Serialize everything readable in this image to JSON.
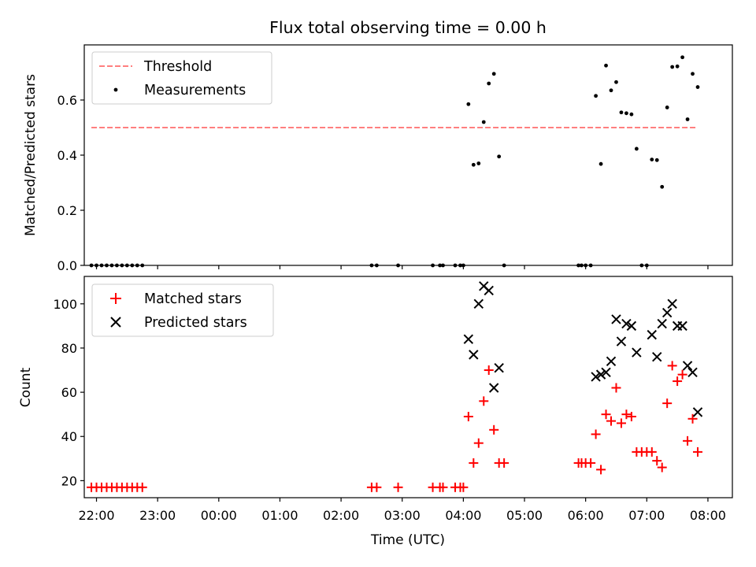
{
  "title": "Flux total observing time = 0.00 h",
  "chart_data": [
    {
      "type": "scatter",
      "ylabel": "Matched/Predicted stars",
      "xlabel": "",
      "xlim": [
        "21:48",
        "08:24"
      ],
      "ylim": [
        0,
        0.8
      ],
      "yticks": [
        0.0,
        0.2,
        0.4,
        0.6
      ],
      "ytick_labels": [
        "0.0",
        "0.2",
        "0.4",
        "0.6"
      ],
      "legend": "top-left",
      "threshold": {
        "name": "Threshold",
        "value": 0.5,
        "x_start": "21:55",
        "x_end": "07:50",
        "color": "#ff7f7f",
        "style": "dashed"
      },
      "series": [
        {
          "name": "Measurements",
          "color": "#000000",
          "marker": "dot",
          "points": [
            [
              "21:55",
              0
            ],
            [
              "22:00",
              0
            ],
            [
              "22:05",
              0
            ],
            [
              "22:10",
              0
            ],
            [
              "22:15",
              0
            ],
            [
              "22:20",
              0
            ],
            [
              "22:25",
              0
            ],
            [
              "22:30",
              0
            ],
            [
              "22:35",
              0
            ],
            [
              "22:40",
              0
            ],
            [
              "22:45",
              0
            ],
            [
              "02:30",
              0
            ],
            [
              "02:35",
              0
            ],
            [
              "02:56",
              0
            ],
            [
              "03:30",
              0
            ],
            [
              "03:37",
              0
            ],
            [
              "03:40",
              0
            ],
            [
              "03:52",
              0
            ],
            [
              "03:57",
              0
            ],
            [
              "04:00",
              0
            ],
            [
              "04:05",
              0.585
            ],
            [
              "04:10",
              0.365
            ],
            [
              "04:15",
              0.37
            ],
            [
              "04:20",
              0.52
            ],
            [
              "04:25",
              0.66
            ],
            [
              "04:30",
              0.695
            ],
            [
              "04:35",
              0.395
            ],
            [
              "04:40",
              0
            ],
            [
              "05:53",
              0
            ],
            [
              "05:56",
              0
            ],
            [
              "06:00",
              0
            ],
            [
              "06:05",
              0
            ],
            [
              "06:10",
              0.615
            ],
            [
              "06:15",
              0.368
            ],
            [
              "06:20",
              0.725
            ],
            [
              "06:25",
              0.635
            ],
            [
              "06:30",
              0.665
            ],
            [
              "06:35",
              0.555
            ],
            [
              "06:40",
              0.552
            ],
            [
              "06:45",
              0.548
            ],
            [
              "06:50",
              0.423
            ],
            [
              "06:55",
              0
            ],
            [
              "07:00",
              0
            ],
            [
              "07:05",
              0.384
            ],
            [
              "07:10",
              0.382
            ],
            [
              "07:15",
              0.285
            ],
            [
              "07:20",
              0.573
            ],
            [
              "07:25",
              0.72
            ],
            [
              "07:30",
              0.722
            ],
            [
              "07:35",
              0.755
            ],
            [
              "07:40",
              0.53
            ],
            [
              "07:45",
              0.695
            ],
            [
              "07:50",
              0.647
            ]
          ]
        }
      ]
    },
    {
      "type": "scatter",
      "ylabel": "Count",
      "xlabel": "Time (UTC)",
      "xlim": [
        "21:48",
        "08:24"
      ],
      "ylim": [
        12.3,
        112.4
      ],
      "yticks": [
        20,
        40,
        60,
        80,
        100
      ],
      "ytick_labels": [
        "20",
        "40",
        "60",
        "80",
        "100"
      ],
      "xticks": [
        "22:00",
        "23:00",
        "00:00",
        "01:00",
        "02:00",
        "03:00",
        "04:00",
        "05:00",
        "06:00",
        "07:00",
        "08:00"
      ],
      "legend": "top-left",
      "series": [
        {
          "name": "Matched stars",
          "color": "#ff0000",
          "marker": "plus",
          "points": [
            [
              "21:55",
              17
            ],
            [
              "22:00",
              17
            ],
            [
              "22:05",
              17
            ],
            [
              "22:10",
              17
            ],
            [
              "22:15",
              17
            ],
            [
              "22:20",
              17
            ],
            [
              "22:25",
              17
            ],
            [
              "22:30",
              17
            ],
            [
              "22:35",
              17
            ],
            [
              "22:40",
              17
            ],
            [
              "22:45",
              17
            ],
            [
              "02:30",
              17
            ],
            [
              "02:35",
              17
            ],
            [
              "02:56",
              17
            ],
            [
              "03:30",
              17
            ],
            [
              "03:37",
              17
            ],
            [
              "03:40",
              17
            ],
            [
              "03:52",
              17
            ],
            [
              "03:57",
              17
            ],
            [
              "04:00",
              17
            ],
            [
              "04:05",
              49
            ],
            [
              "04:10",
              28
            ],
            [
              "04:15",
              37
            ],
            [
              "04:20",
              56
            ],
            [
              "04:25",
              70
            ],
            [
              "04:30",
              43
            ],
            [
              "04:35",
              28
            ],
            [
              "04:40",
              28
            ],
            [
              "05:53",
              28
            ],
            [
              "05:56",
              28
            ],
            [
              "06:00",
              28
            ],
            [
              "06:05",
              28
            ],
            [
              "06:10",
              41
            ],
            [
              "06:15",
              25
            ],
            [
              "06:20",
              50
            ],
            [
              "06:25",
              47
            ],
            [
              "06:30",
              62
            ],
            [
              "06:35",
              46
            ],
            [
              "06:40",
              50
            ],
            [
              "06:45",
              49
            ],
            [
              "06:50",
              33
            ],
            [
              "06:55",
              33
            ],
            [
              "07:00",
              33
            ],
            [
              "07:05",
              33
            ],
            [
              "07:10",
              29
            ],
            [
              "07:15",
              26
            ],
            [
              "07:20",
              55
            ],
            [
              "07:25",
              72
            ],
            [
              "07:30",
              65
            ],
            [
              "07:35",
              68
            ],
            [
              "07:40",
              38
            ],
            [
              "07:45",
              48
            ],
            [
              "07:50",
              33
            ]
          ]
        },
        {
          "name": "Predicted stars",
          "color": "#000000",
          "marker": "x",
          "points": [
            [
              "04:05",
              84
            ],
            [
              "04:10",
              77
            ],
            [
              "04:15",
              100
            ],
            [
              "04:20",
              108
            ],
            [
              "04:25",
              106
            ],
            [
              "04:30",
              62
            ],
            [
              "04:35",
              71
            ],
            [
              "06:10",
              67
            ],
            [
              "06:15",
              68
            ],
            [
              "06:20",
              69
            ],
            [
              "06:25",
              74
            ],
            [
              "06:30",
              93
            ],
            [
              "06:35",
              83
            ],
            [
              "06:40",
              91
            ],
            [
              "06:45",
              90
            ],
            [
              "06:50",
              78
            ],
            [
              "07:05",
              86
            ],
            [
              "07:10",
              76
            ],
            [
              "07:15",
              91
            ],
            [
              "07:20",
              96
            ],
            [
              "07:25",
              100
            ],
            [
              "07:30",
              90
            ],
            [
              "07:35",
              90
            ],
            [
              "07:40",
              72
            ],
            [
              "07:45",
              69
            ],
            [
              "07:50",
              51
            ]
          ]
        }
      ]
    }
  ]
}
